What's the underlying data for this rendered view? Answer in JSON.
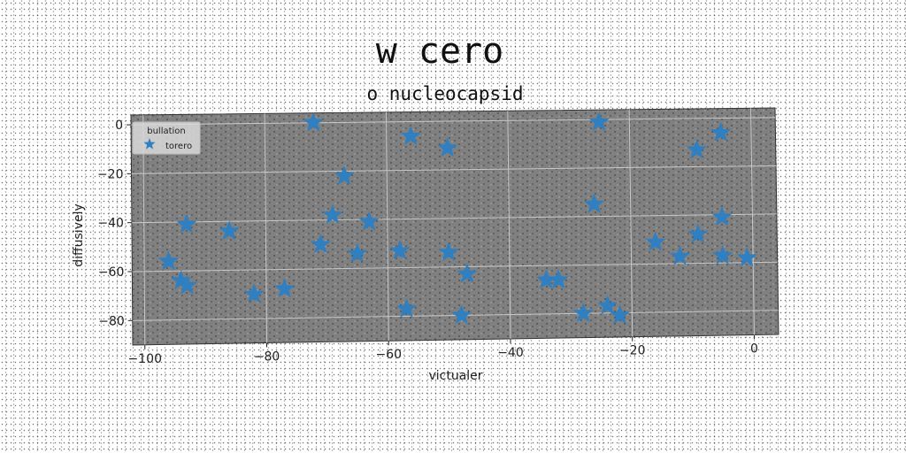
{
  "chart_data": {
    "type": "scatter",
    "title": "w cero",
    "subtitle": "o nucleocapsid",
    "xlabel": "victualer",
    "ylabel": "diffusively",
    "xlim": [
      -102,
      4
    ],
    "ylim": [
      -90,
      4
    ],
    "xticks": [
      -100,
      -80,
      -60,
      -40,
      -20,
      0
    ],
    "yticks": [
      0,
      -20,
      -40,
      -60,
      -80
    ],
    "grid": true,
    "legend": {
      "title": "bullation",
      "position": "top-left"
    },
    "colors": {
      "plot_background": "#808080",
      "marker": "#2f7fc1",
      "grid": "#c8c8c8"
    },
    "series": [
      {
        "name": "torero",
        "marker": "star",
        "x": [
          -72,
          -56,
          -50,
          -25,
          -9,
          -5,
          -67,
          -26,
          -93,
          -86,
          -69,
          -63,
          -71,
          -65,
          -58,
          -50,
          -96,
          -94,
          -93,
          -82,
          -77,
          -47,
          -34,
          -32,
          -28,
          -24,
          -22,
          -16,
          -12,
          -9,
          -5,
          -5,
          -1,
          -57,
          -48
        ],
        "y": [
          0,
          -6,
          -11,
          -1,
          -13,
          -6,
          -22,
          -35,
          -41,
          -44,
          -38,
          -41,
          -50,
          -54,
          -53,
          -54,
          -56,
          -64,
          -66,
          -70,
          -68,
          -63,
          -66,
          -66,
          -80,
          -77,
          -81,
          -51,
          -57,
          -48,
          -41,
          -57,
          -58,
          -77,
          -80
        ]
      }
    ]
  }
}
